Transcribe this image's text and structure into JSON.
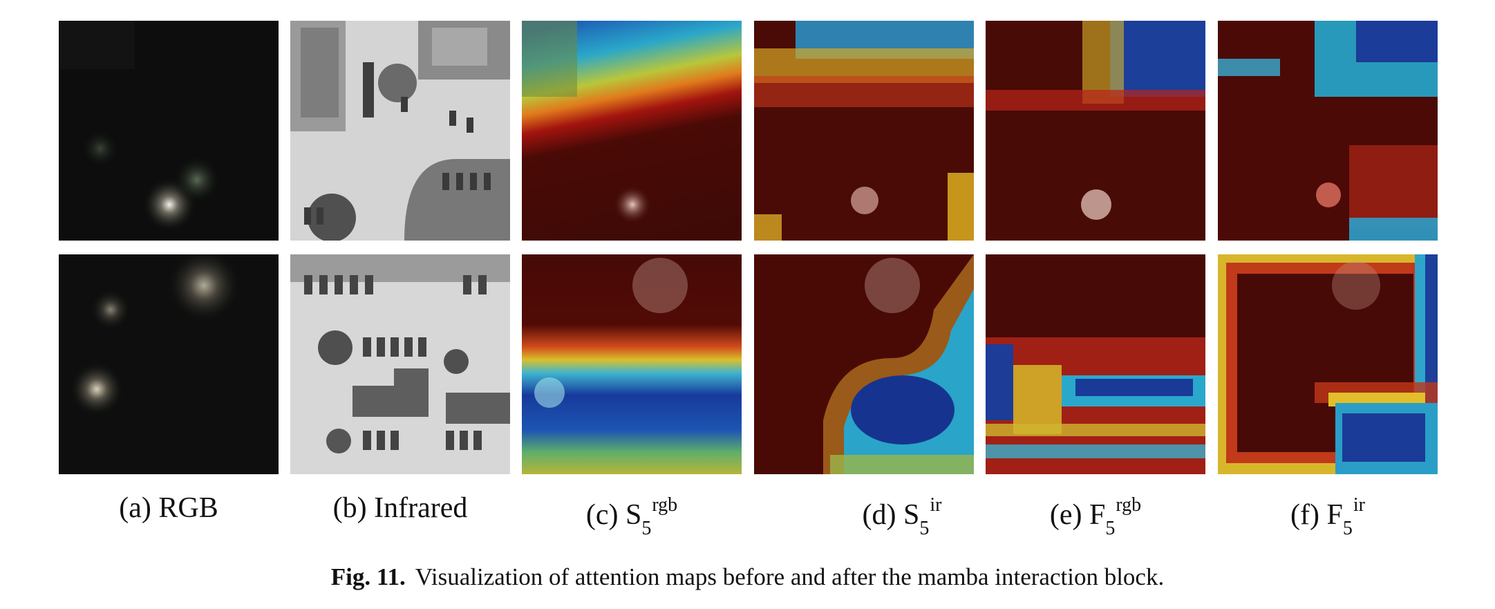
{
  "figure": {
    "columns": [
      {
        "id": "a",
        "prefix": "(a) ",
        "main": "RGB",
        "sub": "",
        "sup": ""
      },
      {
        "id": "b",
        "prefix": "(b) ",
        "main": "Infrared",
        "sub": "",
        "sup": ""
      },
      {
        "id": "c",
        "prefix": "(c) ",
        "main": "S",
        "sub": "5",
        "sup": "rgb"
      },
      {
        "id": "d",
        "prefix": "(d) ",
        "main": "S",
        "sub": "5",
        "sup": "ir"
      },
      {
        "id": "e",
        "prefix": "(e) ",
        "main": "F",
        "sub": "5",
        "sup": "rgb"
      },
      {
        "id": "f",
        "prefix": "(f) ",
        "main": "F",
        "sub": "5",
        "sup": "ir"
      }
    ],
    "caption_label": "Fig. 11.",
    "caption_text": "Visualization of attention maps before and after the mamba interaction block."
  }
}
